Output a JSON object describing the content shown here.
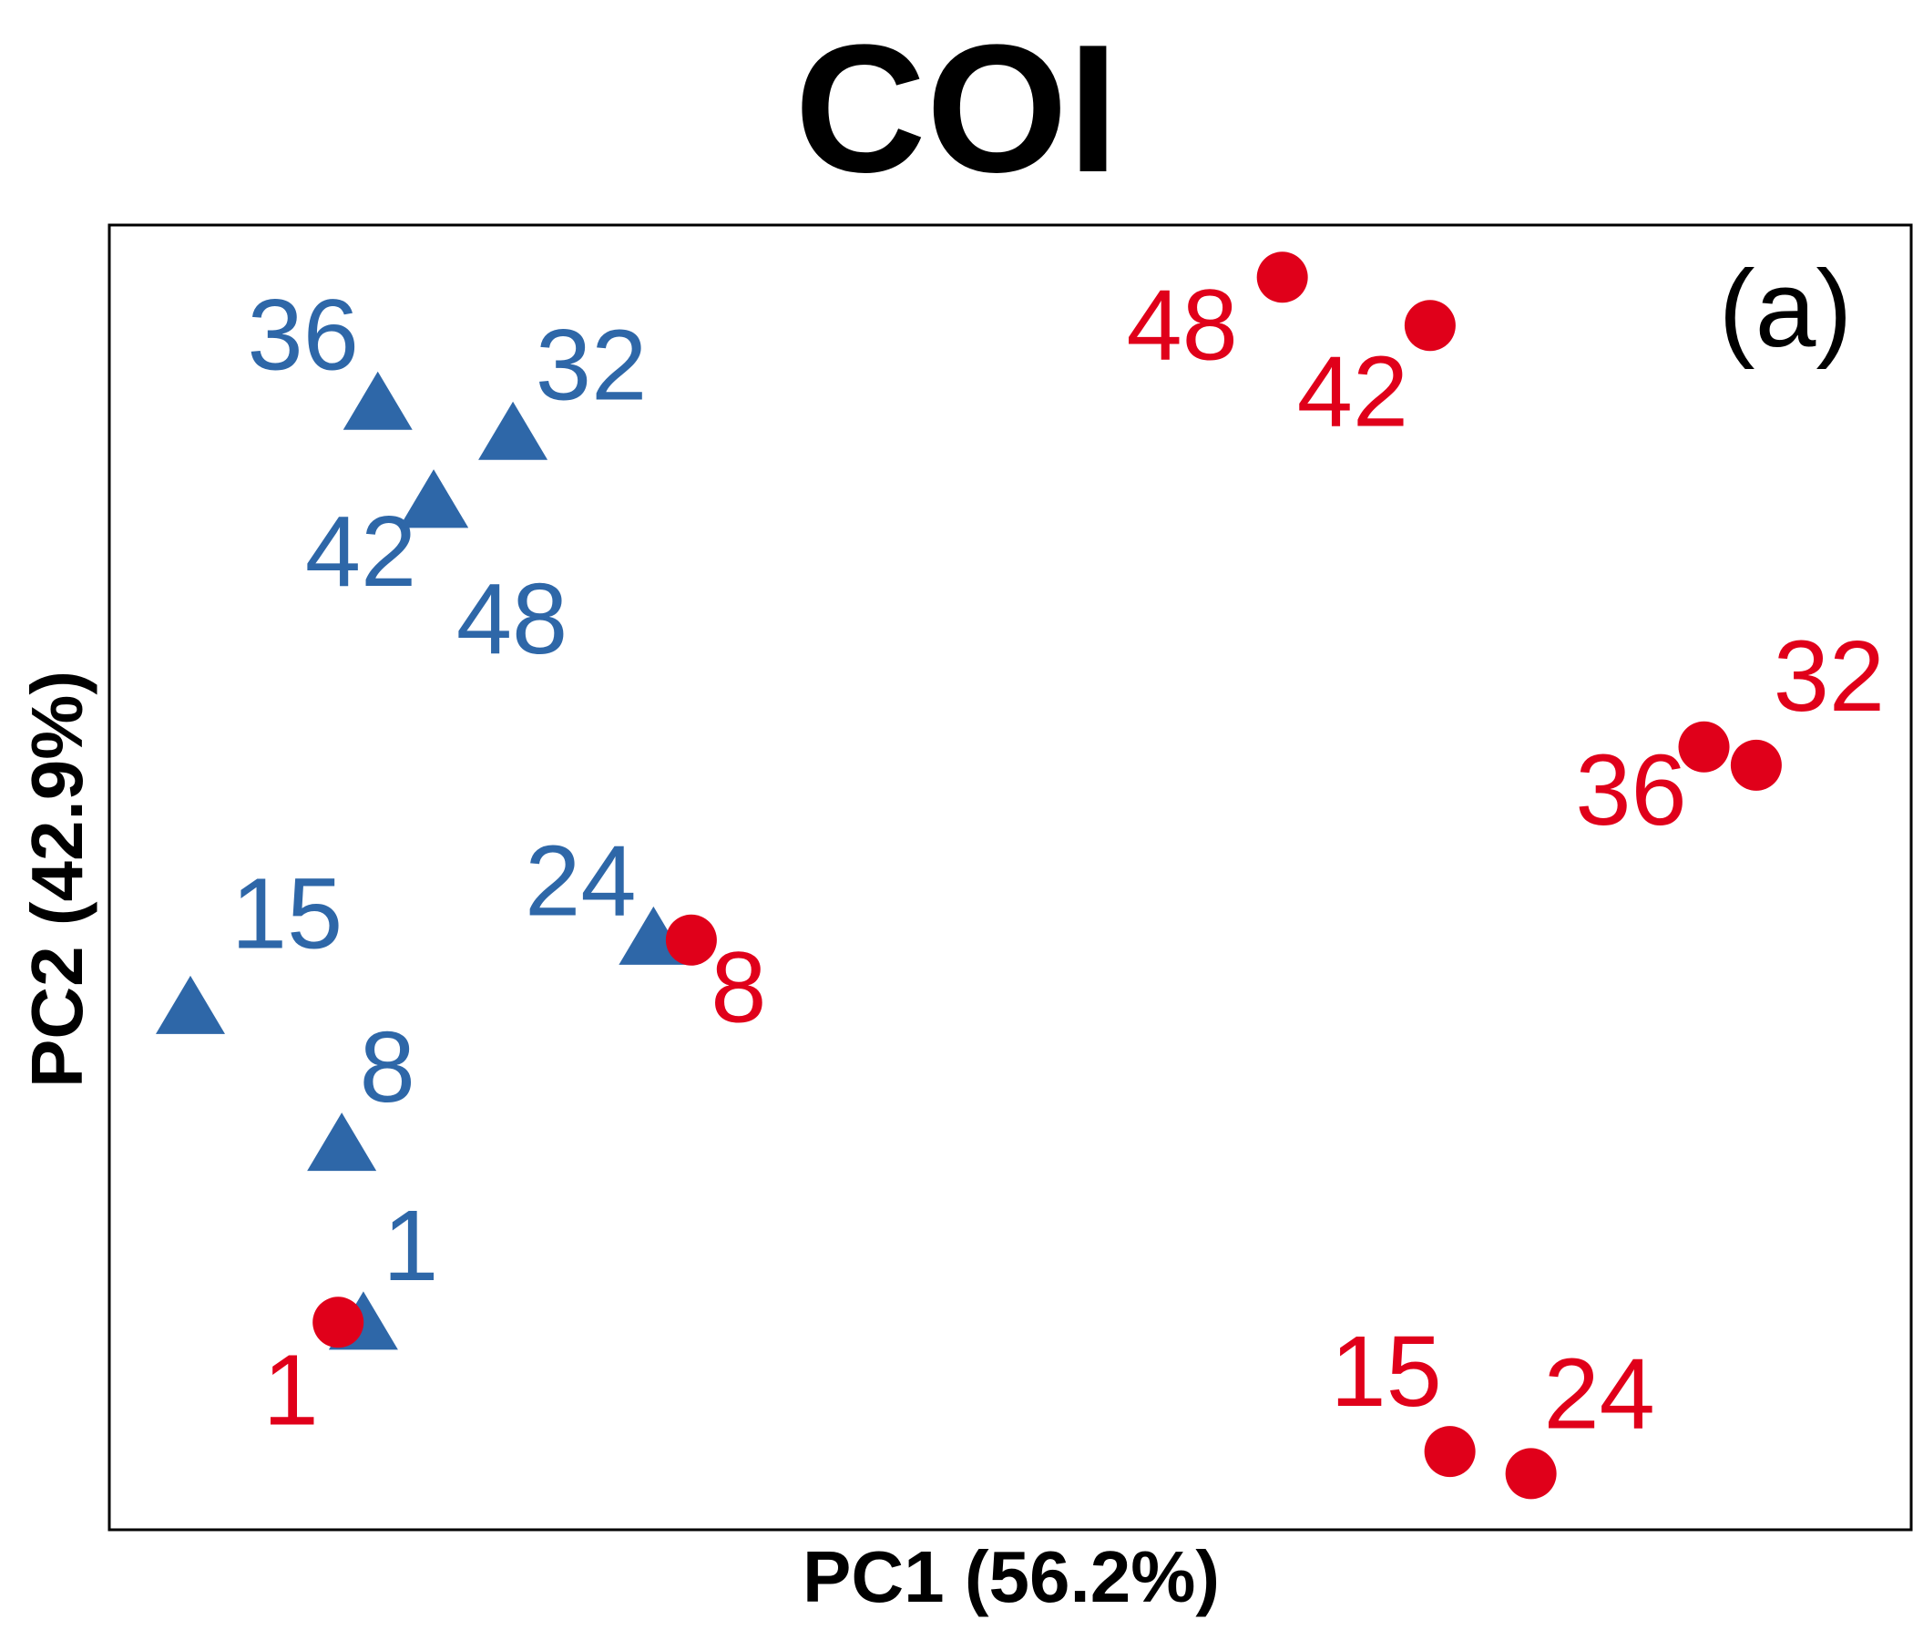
{
  "colors": {
    "series_a": "#2e67a8",
    "series_b": "#e0001a"
  },
  "chart_data": {
    "type": "scatter",
    "title": "COI",
    "panel_label": "(a)",
    "xlabel": "PC1 (56.2%)",
    "ylabel": "PC2 (42.9%)",
    "xlim": [
      0,
      1000
    ],
    "ylim": [
      0,
      1000
    ],
    "grid": false,
    "legend": "none",
    "series": [
      {
        "marker": "triangle",
        "color": "#2e67a8",
        "points": [
          {
            "label": "36",
            "x": 149,
            "y": 860
          },
          {
            "label": "32",
            "x": 224,
            "y": 837
          },
          {
            "label": "42",
            "x": 180,
            "y": 785
          },
          {
            "label": "48",
            "x": 180,
            "y": 785
          },
          {
            "label": "15",
            "x": 45,
            "y": 397
          },
          {
            "label": "24",
            "x": 302,
            "y": 450
          },
          {
            "label": "8",
            "x": 129,
            "y": 292
          },
          {
            "label": "1",
            "x": 141,
            "y": 155
          }
        ]
      },
      {
        "marker": "circle",
        "color": "#e0001a",
        "points": [
          {
            "label": "48",
            "x": 651,
            "y": 960
          },
          {
            "label": "42",
            "x": 733,
            "y": 923
          },
          {
            "label": "36",
            "x": 885,
            "y": 600
          },
          {
            "label": "32",
            "x": 914,
            "y": 586
          },
          {
            "label": "8",
            "x": 323,
            "y": 452
          },
          {
            "label": "1",
            "x": 127,
            "y": 159
          },
          {
            "label": "15",
            "x": 744,
            "y": 60
          },
          {
            "label": "24",
            "x": 789,
            "y": 43
          }
        ]
      }
    ]
  }
}
